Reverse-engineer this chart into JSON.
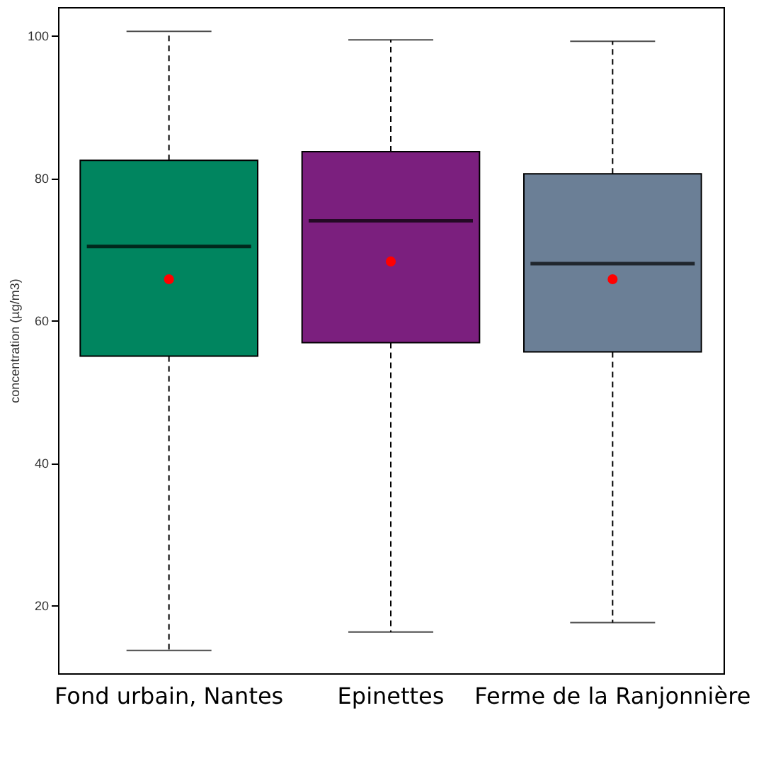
{
  "chart_data": {
    "type": "box",
    "ylabel": "concentration (µg/m3)",
    "categories": [
      "Fond urbain, Nantes",
      "Epinettes",
      "Ferme de la Ranjonnière"
    ],
    "colors": [
      "#00855f",
      "#7b1f7e",
      "#6b7f96"
    ],
    "boxes": [
      {
        "low": 13.7,
        "q1": 55.0,
        "median": 70.4,
        "q3": 82.5,
        "high": 100.6,
        "mean": 65.8
      },
      {
        "low": 16.3,
        "q1": 56.9,
        "median": 74.0,
        "q3": 83.7,
        "high": 99.4,
        "mean": 68.3
      },
      {
        "low": 17.6,
        "q1": 55.6,
        "median": 68.0,
        "q3": 80.6,
        "high": 99.2,
        "mean": 65.8
      }
    ],
    "ylim": [
      10.5,
      104
    ],
    "yticks": [
      20,
      40,
      60,
      80,
      100
    ]
  }
}
